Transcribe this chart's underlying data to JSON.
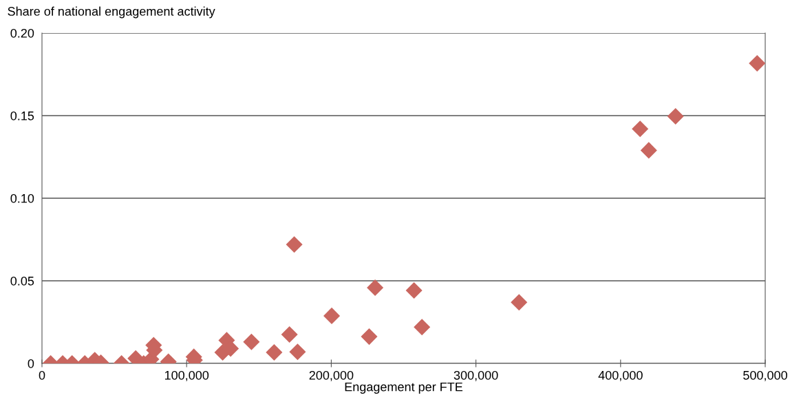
{
  "chart_data": {
    "type": "scatter",
    "xlabel": "Engagement per FTE",
    "ylabel": "Share of national engagement activity",
    "x": [
      6000,
      14300,
      20800,
      29600,
      36500,
      40700,
      55000,
      64800,
      70300,
      75400,
      77200,
      77700,
      87400,
      105000,
      105500,
      124900,
      127700,
      130400,
      144800,
      160500,
      171100,
      174400,
      176700,
      200300,
      226200,
      230300,
      257200,
      262700,
      329800,
      413500,
      419500,
      438000,
      494400
    ],
    "values": [
      0.0,
      0.0,
      0.0,
      0.0,
      0.002,
      0.0004,
      0.0,
      0.003,
      0.0,
      0.0025,
      0.011,
      0.008,
      0.001,
      0.004,
      0.002,
      0.0067,
      0.014,
      0.009,
      0.013,
      0.0067,
      0.0175,
      0.072,
      0.007,
      0.0288,
      0.0162,
      0.0458,
      0.0442,
      0.022,
      0.037,
      0.142,
      0.129,
      0.1496,
      0.1817
    ],
    "color": "#c9665f",
    "marker": "diamond",
    "xlim": [
      0,
      500000
    ],
    "xticks": [
      {
        "value": 0,
        "label": "0"
      },
      {
        "value": 100000,
        "label": "100,000"
      },
      {
        "value": 200000,
        "label": "200,000"
      },
      {
        "value": 300000,
        "label": "300,000"
      },
      {
        "value": 400000,
        "label": "400,000"
      },
      {
        "value": 500000,
        "label": "500,000"
      }
    ],
    "ylim": [
      0,
      0.2
    ],
    "yticks": [
      {
        "value": 0,
        "label": "0"
      },
      {
        "value": 0.05,
        "label": "0.05"
      },
      {
        "value": 0.1,
        "label": "0.10"
      },
      {
        "value": 0.15,
        "label": "0.15"
      },
      {
        "value": 0.2,
        "label": "0.20"
      }
    ],
    "grid": "y"
  }
}
